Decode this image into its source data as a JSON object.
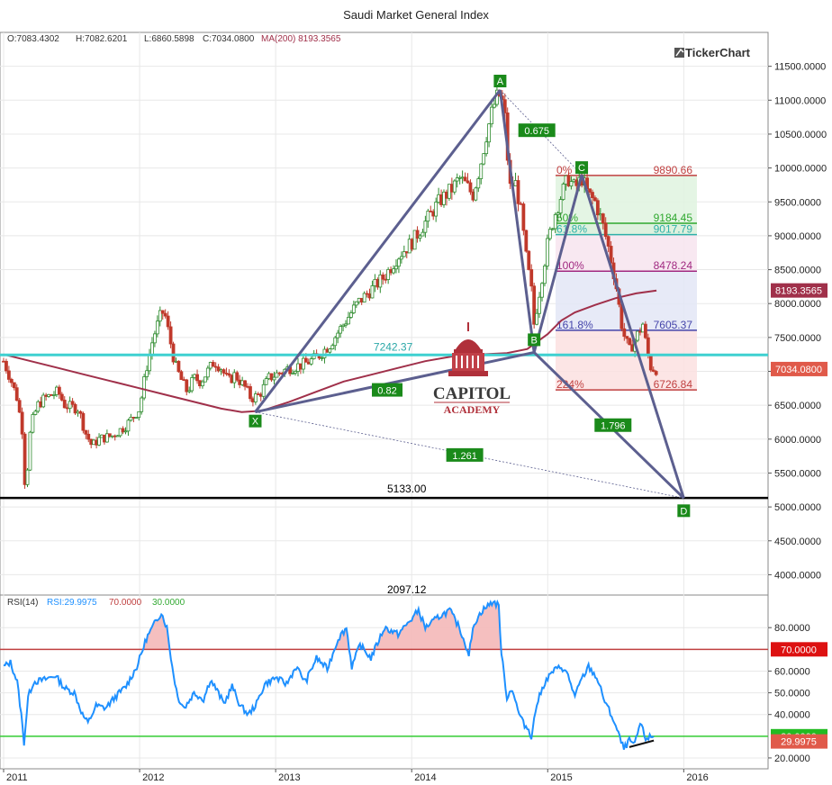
{
  "title": "Saudi Market General Index",
  "brand": "TickerChart",
  "academy": {
    "line1": "CAPITOL",
    "line2": "ACADEMY"
  },
  "ohlc": {
    "o_label": "O:7083.4302",
    "h_label": "H:7082.6201",
    "l_label": "L:6860.5898",
    "c_label": "C:7034.0800",
    "ma_label": "MA(200) 8193.3565"
  },
  "rsi_header": {
    "name": "RSI(14)",
    "value": "RSI:29.9975",
    "upper": "70.0000",
    "lower": "30.0000"
  },
  "colors": {
    "up": "#2e8b2e",
    "down": "#c0392b",
    "ma": "#a0304a",
    "rsi": "#1e90ff",
    "pattern": "#5c5f8f",
    "support": "#3fd0d0",
    "ob_line": "#c04040",
    "os_line": "#33cc33"
  },
  "chart_data": [
    {
      "type": "candlestick",
      "title": "Saudi Market General Index",
      "ylim": [
        3700,
        12000
      ],
      "y_ticks": [
        4000,
        4500,
        5000,
        5500,
        6000,
        6500,
        7000,
        7500,
        8000,
        8500,
        9000,
        9500,
        10000,
        10500,
        11000,
        11500
      ],
      "y_tick_labels": [
        "4000.0000",
        "4500.0000",
        "5000.0000",
        "5500.0000",
        "6000.0000",
        "6500.0000",
        "7000.0000",
        "7500.0000",
        "8000.0000",
        "8500.0000",
        "9000.0000",
        "9500.0000",
        "10000.0000",
        "10500.0000",
        "11000.0000",
        "11500.0000"
      ],
      "x_ticks": [
        "2011",
        "2012",
        "2013",
        "2014",
        "2015",
        "2016"
      ],
      "price_path": [
        [
          2011.0,
          7150
        ],
        [
          2011.05,
          6900
        ],
        [
          2011.1,
          6600
        ],
        [
          2011.14,
          6100
        ],
        [
          2011.16,
          5200
        ],
        [
          2011.2,
          6200
        ],
        [
          2011.25,
          6500
        ],
        [
          2011.3,
          6600
        ],
        [
          2011.4,
          6700
        ],
        [
          2011.45,
          6500
        ],
        [
          2011.55,
          6450
        ],
        [
          2011.6,
          6100
        ],
        [
          2011.65,
          5900
        ],
        [
          2011.7,
          6000
        ],
        [
          2011.8,
          6050
        ],
        [
          2011.9,
          6200
        ],
        [
          2012.0,
          6450
        ],
        [
          2012.05,
          7050
        ],
        [
          2012.1,
          7500
        ],
        [
          2012.15,
          7800
        ],
        [
          2012.18,
          7900
        ],
        [
          2012.22,
          7500
        ],
        [
          2012.26,
          7100
        ],
        [
          2012.3,
          6900
        ],
        [
          2012.35,
          6700
        ],
        [
          2012.4,
          6900
        ],
        [
          2012.45,
          6850
        ],
        [
          2012.5,
          7000
        ],
        [
          2012.55,
          7150
        ],
        [
          2012.6,
          7050
        ],
        [
          2012.65,
          6850
        ],
        [
          2012.7,
          6950
        ],
        [
          2012.78,
          6750
        ],
        [
          2012.82,
          6600
        ],
        [
          2012.88,
          6650
        ],
        [
          2012.95,
          6900
        ],
        [
          2013.0,
          6950
        ],
        [
          2013.1,
          7050
        ],
        [
          2013.2,
          7100
        ],
        [
          2013.3,
          7200
        ],
        [
          2013.4,
          7400
        ],
        [
          2013.5,
          7700
        ],
        [
          2013.6,
          8000
        ],
        [
          2013.7,
          8200
        ],
        [
          2013.8,
          8400
        ],
        [
          2013.9,
          8700
        ],
        [
          2014.0,
          8900
        ],
        [
          2014.1,
          9200
        ],
        [
          2014.2,
          9500
        ],
        [
          2014.3,
          9700
        ],
        [
          2014.35,
          9850
        ],
        [
          2014.4,
          9750
        ],
        [
          2014.45,
          9600
        ],
        [
          2014.5,
          10000
        ],
        [
          2014.55,
          10500
        ],
        [
          2014.6,
          10900
        ],
        [
          2014.64,
          11100
        ],
        [
          2014.68,
          10900
        ],
        [
          2014.72,
          9700
        ],
        [
          2014.76,
          9800
        ],
        [
          2014.8,
          9400
        ],
        [
          2014.84,
          8700
        ],
        [
          2014.88,
          8200
        ],
        [
          2014.9,
          7700
        ],
        [
          2014.95,
          8300
        ],
        [
          2015.0,
          8900
        ],
        [
          2015.05,
          9300
        ],
        [
          2015.1,
          9600
        ],
        [
          2015.15,
          9850
        ],
        [
          2015.2,
          9700
        ],
        [
          2015.25,
          9850
        ],
        [
          2015.3,
          9600
        ],
        [
          2015.35,
          9500
        ],
        [
          2015.4,
          9200
        ],
        [
          2015.45,
          8800
        ],
        [
          2015.5,
          8300
        ],
        [
          2015.55,
          7600
        ],
        [
          2015.6,
          7300
        ],
        [
          2015.65,
          7500
        ],
        [
          2015.7,
          7700
        ],
        [
          2015.73,
          7300
        ],
        [
          2015.76,
          7050
        ],
        [
          2015.8,
          7034
        ]
      ],
      "ma200_path": [
        [
          2011.0,
          7250
        ],
        [
          2011.2,
          7150
        ],
        [
          2011.4,
          7050
        ],
        [
          2011.6,
          6950
        ],
        [
          2011.8,
          6850
        ],
        [
          2012.0,
          6750
        ],
        [
          2012.2,
          6650
        ],
        [
          2012.4,
          6550
        ],
        [
          2012.6,
          6450
        ],
        [
          2012.75,
          6400
        ],
        [
          2012.9,
          6420
        ],
        [
          2013.1,
          6550
        ],
        [
          2013.3,
          6700
        ],
        [
          2013.5,
          6850
        ],
        [
          2013.7,
          6950
        ],
        [
          2013.9,
          7050
        ],
        [
          2014.1,
          7150
        ],
        [
          2014.3,
          7220
        ],
        [
          2014.5,
          7250
        ],
        [
          2014.7,
          7270
        ],
        [
          2014.85,
          7330
        ],
        [
          2015.0,
          7550
        ],
        [
          2015.1,
          7750
        ],
        [
          2015.2,
          7870
        ],
        [
          2015.35,
          7980
        ],
        [
          2015.5,
          8080
        ],
        [
          2015.65,
          8150
        ],
        [
          2015.8,
          8193
        ]
      ],
      "support_line": {
        "value": 7242.37,
        "label": "7242.37"
      },
      "black_line": {
        "value": 5133.0,
        "label": "5133.00"
      },
      "clipped_label": "2097.12",
      "current_price": "7034.0800",
      "ma_price": "8193.3565",
      "pattern_points": [
        {
          "name": "X",
          "x": 2012.85,
          "y": 6400
        },
        {
          "name": "A",
          "x": 2014.65,
          "y": 11150
        },
        {
          "name": "B",
          "x": 2014.9,
          "y": 7280
        },
        {
          "name": "C",
          "x": 2015.25,
          "y": 9900
        },
        {
          "name": "D",
          "x": 2016.0,
          "y": 5130
        }
      ],
      "ratios": [
        {
          "label": "0.675",
          "x": 2014.92,
          "y": 10550
        },
        {
          "label": "0.82",
          "x": 2013.82,
          "y": 6720
        },
        {
          "label": "1.796",
          "x": 2015.48,
          "y": 6200
        },
        {
          "label": "1.261",
          "x": 2014.39,
          "y": 5760
        }
      ],
      "fib_levels": [
        {
          "pct": "0%",
          "value_label": "9890.66",
          "value": 9890.66,
          "color": "#c04040",
          "fill": "#dff3df"
        },
        {
          "pct": "50%",
          "value_label": "9184.45",
          "value": 9184.45,
          "color": "#2ea82e",
          "fill": "#d8efd8"
        },
        {
          "pct": "61.8%",
          "value_label": "9017.79",
          "value": 9017.79,
          "color": "#2eb0a8",
          "fill": "#f7e4ef"
        },
        {
          "pct": "100%",
          "value_label": "8478.24",
          "value": 8478.24,
          "color": "#a02880",
          "fill": "#e3e6f6"
        },
        {
          "pct": "161.8%",
          "value_label": "7605.37",
          "value": 7605.37,
          "color": "#4444aa",
          "fill": "#fbe1e1"
        },
        {
          "pct": "224%",
          "value_label": "6726.84",
          "value": 6726.84,
          "color": "#c04040",
          "fill": "none"
        }
      ]
    },
    {
      "type": "line",
      "title": "RSI(14)",
      "ylim": [
        15,
        95
      ],
      "y_ticks": [
        20,
        30,
        40,
        50,
        60,
        70,
        80
      ],
      "y_tick_labels": [
        "20.0000",
        "30.0000",
        "40.0000",
        "50.0000",
        "60.0000",
        "70.0000",
        "80.0000"
      ],
      "overbought": 70,
      "oversold": 30,
      "overbought_label": "70.0000",
      "oversold_label": "30.0000",
      "current_label": "29.9975",
      "series": [
        {
          "points": [
            [
              2011.0,
              62
            ],
            [
              2011.05,
              64
            ],
            [
              2011.1,
              55
            ],
            [
              2011.13,
              40
            ],
            [
              2011.15,
              27
            ],
            [
              2011.18,
              48
            ],
            [
              2011.22,
              55
            ],
            [
              2011.3,
              56
            ],
            [
              2011.38,
              58
            ],
            [
              2011.45,
              52
            ],
            [
              2011.52,
              50
            ],
            [
              2011.58,
              40
            ],
            [
              2011.62,
              36
            ],
            [
              2011.68,
              44
            ],
            [
              2011.75,
              43
            ],
            [
              2011.82,
              48
            ],
            [
              2011.9,
              53
            ],
            [
              2011.98,
              62
            ],
            [
              2012.05,
              75
            ],
            [
              2012.12,
              83
            ],
            [
              2012.16,
              87
            ],
            [
              2012.2,
              80
            ],
            [
              2012.24,
              62
            ],
            [
              2012.28,
              48
            ],
            [
              2012.33,
              43
            ],
            [
              2012.4,
              50
            ],
            [
              2012.47,
              47
            ],
            [
              2012.52,
              56
            ],
            [
              2012.56,
              52
            ],
            [
              2012.62,
              45
            ],
            [
              2012.68,
              53
            ],
            [
              2012.74,
              44
            ],
            [
              2012.8,
              40
            ],
            [
              2012.86,
              45
            ],
            [
              2012.92,
              54
            ],
            [
              2013.0,
              57
            ],
            [
              2013.08,
              54
            ],
            [
              2013.15,
              62
            ],
            [
              2013.22,
              55
            ],
            [
              2013.3,
              66
            ],
            [
              2013.38,
              61
            ],
            [
              2013.46,
              75
            ],
            [
              2013.52,
              80
            ],
            [
              2013.56,
              62
            ],
            [
              2013.62,
              72
            ],
            [
              2013.7,
              66
            ],
            [
              2013.8,
              80
            ],
            [
              2013.9,
              77
            ],
            [
              2014.0,
              84
            ],
            [
              2014.05,
              88
            ],
            [
              2014.1,
              80
            ],
            [
              2014.2,
              85
            ],
            [
              2014.28,
              88
            ],
            [
              2014.35,
              80
            ],
            [
              2014.42,
              68
            ],
            [
              2014.46,
              82
            ],
            [
              2014.52,
              88
            ],
            [
              2014.56,
              90
            ],
            [
              2014.6,
              92
            ],
            [
              2014.64,
              90
            ],
            [
              2014.66,
              68
            ],
            [
              2014.7,
              48
            ],
            [
              2014.74,
              52
            ],
            [
              2014.78,
              42
            ],
            [
              2014.82,
              36
            ],
            [
              2014.86,
              33
            ],
            [
              2014.88,
              30
            ],
            [
              2014.92,
              45
            ],
            [
              2014.98,
              55
            ],
            [
              2015.04,
              60
            ],
            [
              2015.1,
              62
            ],
            [
              2015.15,
              58
            ],
            [
              2015.2,
              48
            ],
            [
              2015.24,
              55
            ],
            [
              2015.3,
              62
            ],
            [
              2015.36,
              57
            ],
            [
              2015.42,
              46
            ],
            [
              2015.48,
              38
            ],
            [
              2015.52,
              31
            ],
            [
              2015.56,
              24
            ],
            [
              2015.6,
              28
            ],
            [
              2015.64,
              26
            ],
            [
              2015.68,
              36
            ],
            [
              2015.72,
              29
            ],
            [
              2015.78,
              30
            ]
          ]
        }
      ],
      "divergence": {
        "x1": 2015.6,
        "y1": 25,
        "x2": 2015.78,
        "y2": 28
      }
    }
  ]
}
